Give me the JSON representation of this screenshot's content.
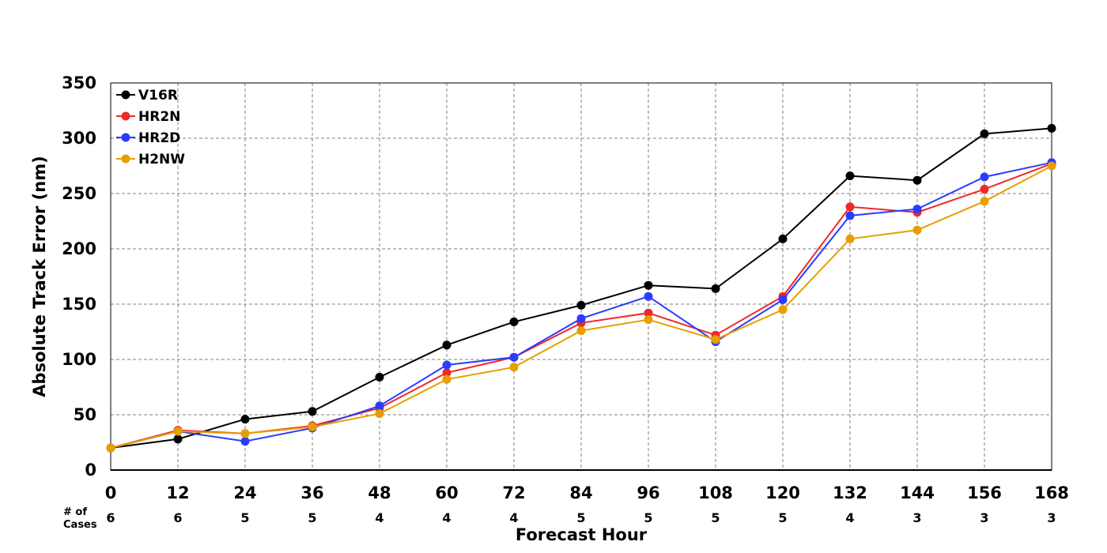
{
  "chart_data": {
    "type": "line",
    "xlabel": "Forecast Hour",
    "ylabel": "Absolute Track Error (nm)",
    "x": [
      0,
      12,
      24,
      36,
      48,
      60,
      72,
      84,
      96,
      108,
      120,
      132,
      144,
      156,
      168
    ],
    "xlim": [
      0,
      168
    ],
    "ylim": [
      0,
      350
    ],
    "yticks": [
      0,
      50,
      100,
      150,
      200,
      250,
      300,
      350
    ],
    "grid": true,
    "legend_position": "top-left",
    "cases_label": "# of Cases",
    "cases_label_lines": [
      "# of",
      "Cases"
    ],
    "cases": [
      "6",
      "6",
      "5",
      "5",
      "4",
      "4",
      "4",
      "5",
      "5",
      "5",
      "5",
      "4",
      "3",
      "3",
      "3"
    ],
    "series": [
      {
        "name": "V16R",
        "color": "#000000",
        "values": [
          20,
          28,
          46,
          53,
          84,
          113,
          134,
          149,
          167,
          164,
          209,
          266,
          262,
          304,
          309
        ]
      },
      {
        "name": "HR2N",
        "color": "#f02828",
        "values": [
          20,
          36,
          33,
          40,
          56,
          88,
          102,
          133,
          142,
          122,
          157,
          238,
          233,
          254,
          277
        ]
      },
      {
        "name": "HR2D",
        "color": "#2a3cff",
        "values": [
          20,
          35,
          26,
          38,
          58,
          95,
          102,
          137,
          157,
          116,
          154,
          230,
          236,
          265,
          278
        ]
      },
      {
        "name": "H2NW",
        "color": "#e69f00",
        "values": [
          20,
          35,
          33,
          39,
          51,
          82,
          93,
          126,
          136,
          118,
          145,
          209,
          217,
          243,
          275
        ]
      }
    ]
  }
}
